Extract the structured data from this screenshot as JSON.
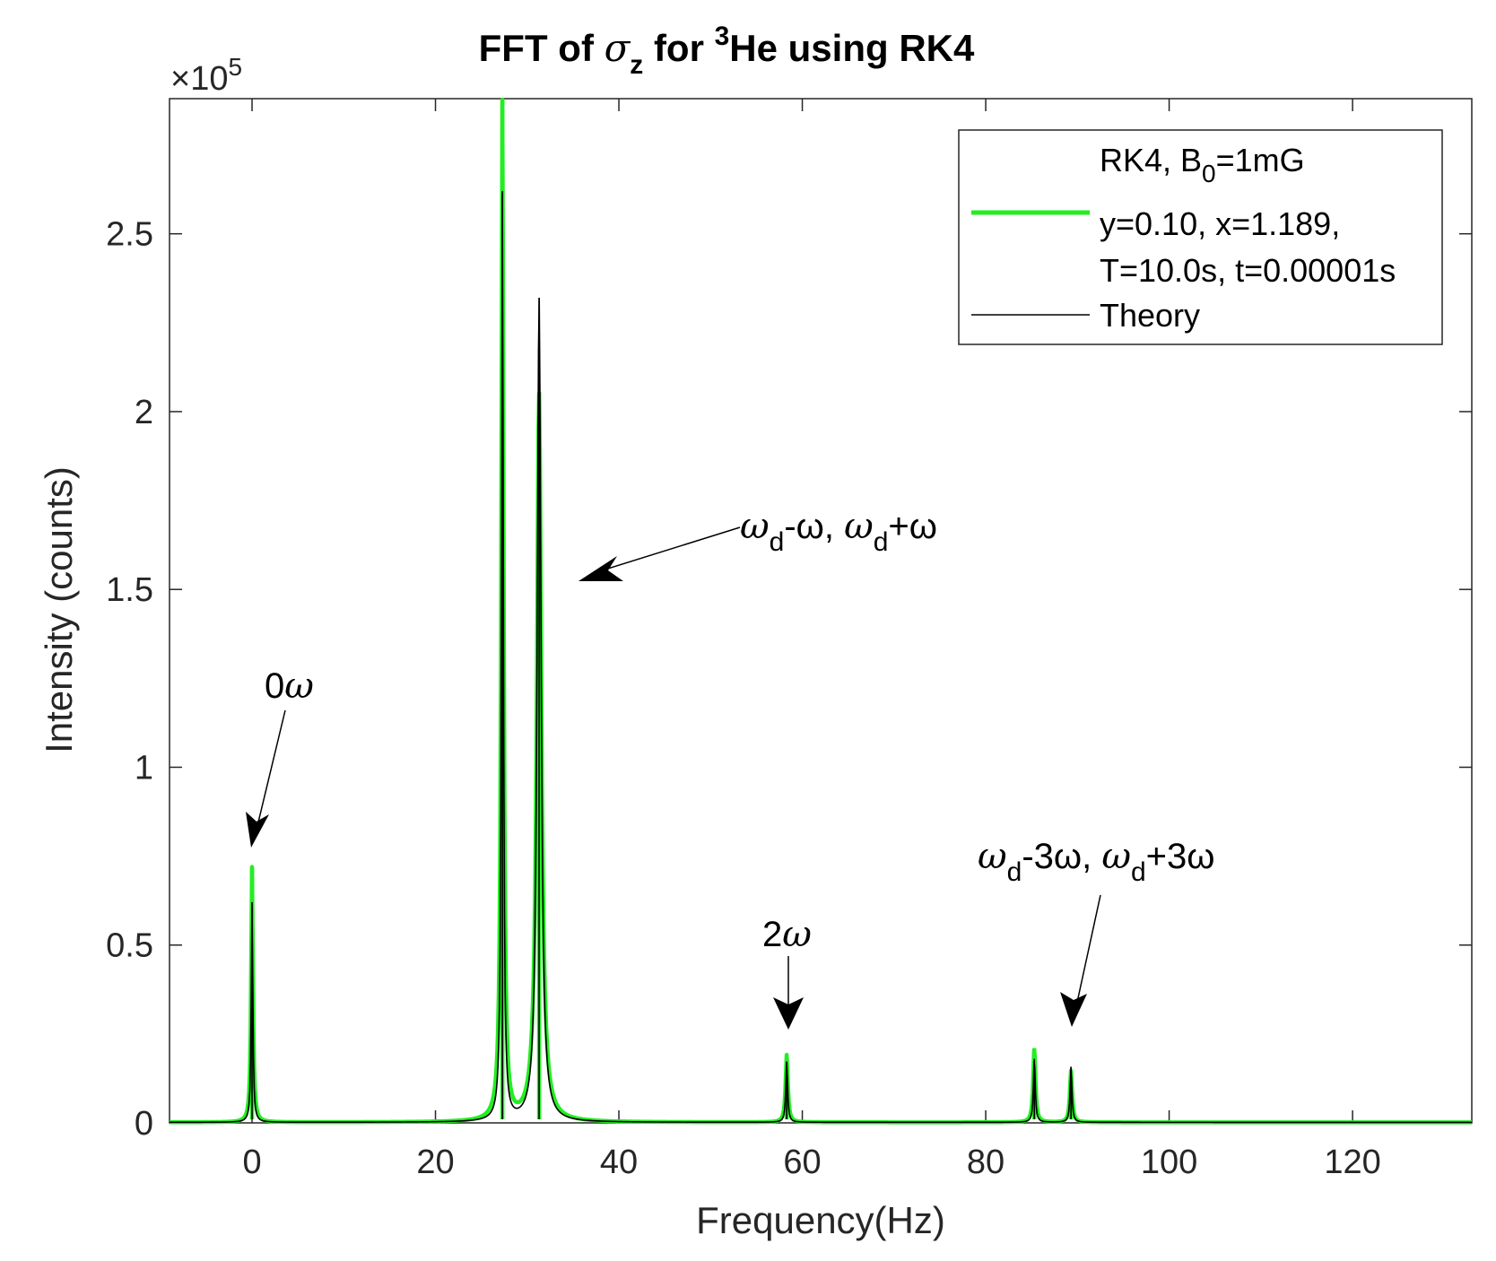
{
  "chart_data": {
    "type": "line",
    "title": {
      "prefix": "FFT of ",
      "sym": "σ",
      "sub": "z",
      "mid": " for ",
      "sup": "3",
      "suffix": "He using RK4"
    },
    "xlabel": "Frequency(Hz)",
    "ylabel": "Intensity (counts)",
    "y_exponent": {
      "base": "×10",
      "exp": "5"
    },
    "xlim": [
      -9,
      133
    ],
    "ylim": [
      0,
      2.88
    ],
    "xticks": [
      0,
      20,
      40,
      60,
      80,
      100,
      120
    ],
    "yticks": [
      0,
      0.5,
      1,
      1.5,
      2,
      2.5
    ],
    "ytick_labels": [
      "0",
      "0.5",
      "1",
      "1.5",
      "2",
      "2.5"
    ],
    "grid": false,
    "legend_position": "top-right",
    "series": [
      {
        "name": "RK4, B0=1mG y=0.10, x=1.189, T=10.0s, t=0.00001s",
        "color": "#22ee22",
        "peaks": [
          {
            "x": 0,
            "y": 0.72,
            "width": 0.12
          },
          {
            "x": 27.3,
            "y": 2.88,
            "width": 0.15
          },
          {
            "x": 31.3,
            "y": 2.05,
            "width": 0.3
          },
          {
            "x": 58.3,
            "y": 0.19,
            "width": 0.15
          },
          {
            "x": 85.3,
            "y": 0.21,
            "width": 0.15
          },
          {
            "x": 89.3,
            "y": 0.145,
            "width": 0.15
          }
        ]
      },
      {
        "name": "Theory",
        "color": "#000000",
        "peaks": [
          {
            "x": 0,
            "y": 0.62,
            "width": 0.1
          },
          {
            "x": 27.3,
            "y": 2.62,
            "width": 0.12
          },
          {
            "x": 31.3,
            "y": 2.32,
            "width": 0.25
          },
          {
            "x": 58.3,
            "y": 0.17,
            "width": 0.12
          },
          {
            "x": 85.3,
            "y": 0.18,
            "width": 0.12
          },
          {
            "x": 89.3,
            "y": 0.155,
            "width": 0.12
          }
        ]
      }
    ],
    "legend": {
      "line1_prefix": "RK4, B",
      "line1_sub": "0",
      "line1_suffix": "=1mG",
      "line2": "y=0.10, x=1.189,",
      "line3": "T=10.0s, t=0.00001s",
      "line4": "Theory"
    },
    "annotations": {
      "zero": {
        "num": "0",
        "sym": "ω"
      },
      "first": {
        "a": "ω",
        "b": "d",
        "c": "-ω, ",
        "d": "ω",
        "e": "d",
        "f": "+ω"
      },
      "two": {
        "num": "2",
        "sym": "ω"
      },
      "third": {
        "a": "ω",
        "b": "d",
        "c": "-3ω, ",
        "d": "ω",
        "e": "d",
        "f": "+3ω"
      }
    }
  }
}
